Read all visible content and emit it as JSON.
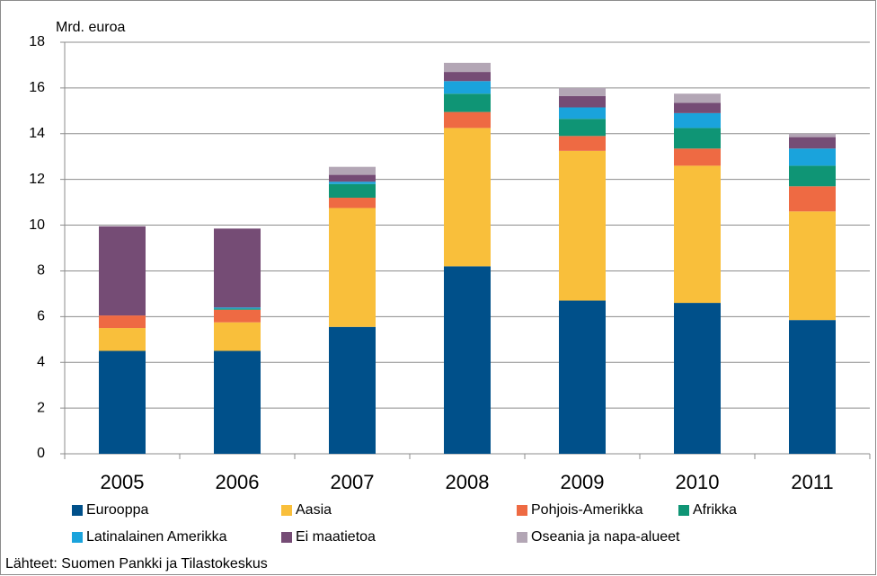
{
  "chart_data": {
    "type": "stacked_bar",
    "y_label": "Mrd. euroa",
    "source": "Lähteet: Suomen Pankki ja Tilastokeskus",
    "categories": [
      "2005",
      "2006",
      "2007",
      "2008",
      "2009",
      "2010",
      "2011"
    ],
    "series": [
      {
        "name": "Eurooppa",
        "color": "#00508a",
        "values": [
          4.5,
          4.5,
          5.55,
          8.2,
          6.7,
          6.6,
          5.85
        ]
      },
      {
        "name": "Aasia",
        "color": "#f9bf3b",
        "values": [
          1.0,
          1.25,
          5.2,
          6.05,
          6.55,
          6.0,
          4.75
        ]
      },
      {
        "name": "Pohjois-Amerikka",
        "color": "#ee6a43",
        "values": [
          0.55,
          0.55,
          0.45,
          0.7,
          0.65,
          0.75,
          1.1
        ]
      },
      {
        "name": "Afrikka",
        "color": "#0f9575",
        "values": [
          0,
          0.05,
          0.6,
          0.8,
          0.75,
          0.9,
          0.9
        ]
      },
      {
        "name": "Latinalainen Amerikka",
        "color": "#1aa3dc",
        "values": [
          0,
          0.05,
          0.1,
          0.55,
          0.5,
          0.65,
          0.75
        ]
      },
      {
        "name": "Ei maatietoa",
        "color": "#754c75",
        "values": [
          3.9,
          3.45,
          0.3,
          0.4,
          0.5,
          0.45,
          0.5
        ]
      },
      {
        "name": "Oseania ja napa-alueet",
        "color": "#b3a6b5",
        "values": [
          0,
          0,
          0.35,
          0.4,
          0.35,
          0.4,
          0.15
        ]
      }
    ],
    "ylim": [
      0,
      18
    ],
    "yticks": [
      0,
      2,
      4,
      6,
      8,
      10,
      12,
      14,
      16,
      18
    ],
    "grid": true
  }
}
